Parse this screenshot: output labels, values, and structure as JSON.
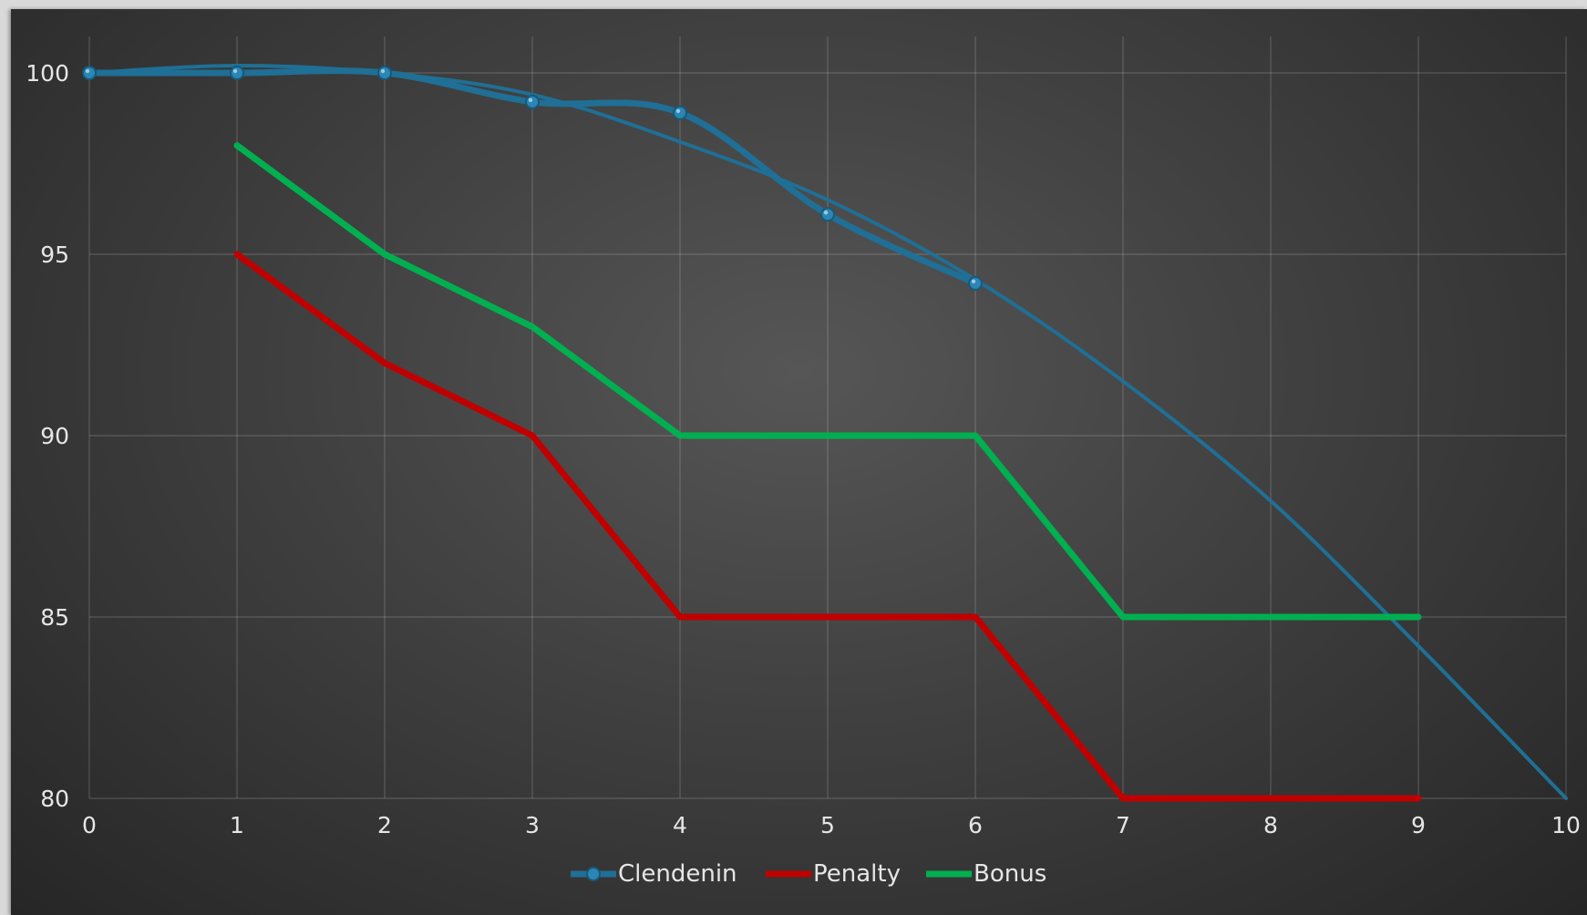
{
  "chart_data": {
    "type": "line",
    "title": "",
    "xlabel": "",
    "ylabel": "",
    "xlim": [
      0,
      10
    ],
    "ylim": [
      80,
      100
    ],
    "x_ticks": [
      "0",
      "1",
      "2",
      "3",
      "4",
      "5",
      "6",
      "7",
      "8",
      "9",
      "10"
    ],
    "y_ticks": [
      "100",
      "95",
      "90",
      "85",
      "80"
    ],
    "grid": true,
    "legend_position": "bottom-center",
    "series": [
      {
        "name": "Clendenin",
        "color": "#1f6f96",
        "marker": "circle",
        "style": "smoothed-with-markers",
        "points": [
          [
            0,
            100
          ],
          [
            1,
            100
          ],
          [
            2,
            100
          ],
          [
            3,
            99.2
          ],
          [
            4,
            98.9
          ],
          [
            5,
            96.1
          ],
          [
            6,
            94.2
          ]
        ]
      },
      {
        "name": "",
        "color": "#1f6f96",
        "style": "smooth-trend",
        "points": [
          [
            0,
            100
          ],
          [
            1,
            100.2
          ],
          [
            2,
            100
          ],
          [
            3,
            99.4
          ],
          [
            4,
            98.1
          ],
          [
            5,
            96.5
          ],
          [
            6,
            94.3
          ],
          [
            7,
            91.5
          ],
          [
            8,
            88.2
          ],
          [
            9,
            84.2
          ],
          [
            10,
            80
          ]
        ]
      },
      {
        "name": "Penalty",
        "color": "#c00000",
        "points": [
          [
            1,
            95
          ],
          [
            2,
            92
          ],
          [
            3,
            90
          ],
          [
            4,
            85
          ],
          [
            5,
            85
          ],
          [
            6,
            85
          ],
          [
            7,
            80
          ],
          [
            8,
            80
          ],
          [
            9,
            80
          ]
        ]
      },
      {
        "name": "Bonus",
        "color": "#00b050",
        "points": [
          [
            1,
            98
          ],
          [
            2,
            95
          ],
          [
            3,
            93
          ],
          [
            4,
            90
          ],
          [
            5,
            90
          ],
          [
            6,
            90
          ],
          [
            7,
            85
          ],
          [
            8,
            85
          ],
          [
            9,
            85
          ]
        ]
      }
    ],
    "legend": [
      {
        "label": "Clendenin",
        "color": "#1f6f96",
        "marker": "circle"
      },
      {
        "label": "Penalty",
        "color": "#c00000"
      },
      {
        "label": "Bonus",
        "color": "#00b050"
      }
    ]
  }
}
